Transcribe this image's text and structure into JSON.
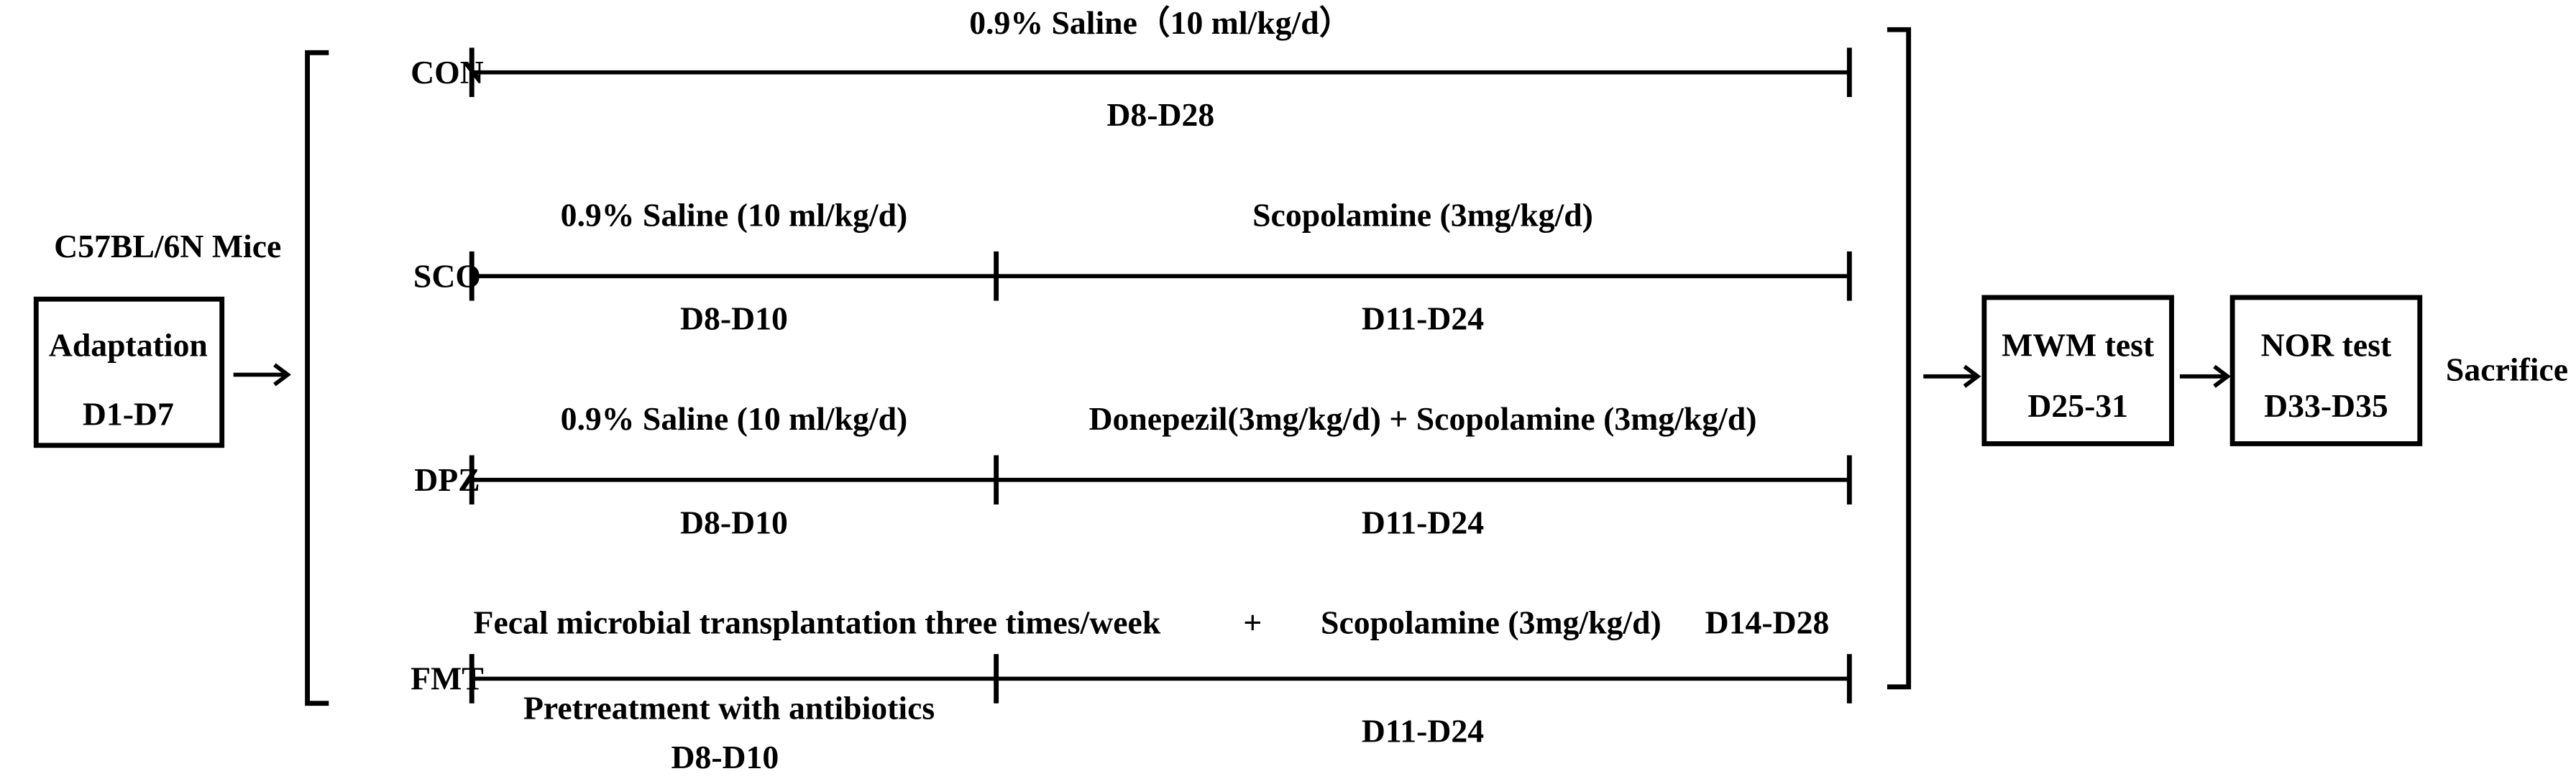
{
  "subject": "C57BL/6N Mice",
  "adaptation": {
    "label": "Adaptation",
    "days": "D1-D7"
  },
  "groups": [
    {
      "name": "CON",
      "segments": [
        {
          "above": "0.9% Saline（10 ml/kg/d）",
          "below": "D8-D28"
        }
      ]
    },
    {
      "name": "SCO",
      "segments": [
        {
          "above": "0.9% Saline (10 ml/kg/d)",
          "below": "D8-D10"
        },
        {
          "above": "Scopolamine (3mg/kg/d)",
          "below": "D11-D24"
        }
      ]
    },
    {
      "name": "DPZ",
      "segments": [
        {
          "above": "0.9% Saline (10 ml/kg/d)",
          "below": "D8-D10"
        },
        {
          "above": "Donepezil(3mg/kg/d) + Scopolamine (3mg/kg/d)",
          "below": "D11-D24"
        }
      ]
    },
    {
      "name": "FMT",
      "treatment": [
        "Fecal microbial transplantation three times/week",
        "+",
        "Scopolamine (3mg/kg/d)",
        "D14-D28"
      ],
      "segments": [
        {
          "above": "Pretreatment with antibiotics",
          "below": "D8-D10"
        },
        {
          "below": "D11-D24"
        }
      ]
    }
  ],
  "tests": [
    {
      "label": "MWM test",
      "days": "D25-31"
    },
    {
      "label": "NOR test",
      "days": "D33-D35"
    }
  ],
  "end": "Sacrifice"
}
